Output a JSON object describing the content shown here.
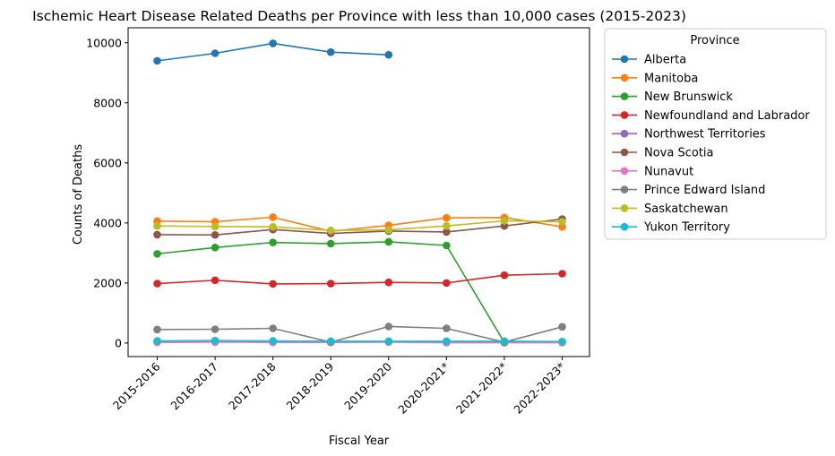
{
  "chart_data": {
    "type": "line",
    "title": "Ischemic Heart Disease Related Deaths per Province with less than 10,000 cases (2015-2023)",
    "xlabel": "Fiscal Year",
    "ylabel": "Counts of Deaths",
    "categories": [
      "2015-2016",
      "2016-2017",
      "2017-2018",
      "2018-2019",
      "2019-2020",
      "2020-2021*",
      "2021-2022*",
      "2022-2023*"
    ],
    "ylim": [
      -450,
      10500
    ],
    "yticks": [
      0,
      2000,
      4000,
      6000,
      8000,
      10000
    ],
    "grid": false,
    "legend": {
      "title": "Province",
      "placement": "outside-right"
    },
    "series": [
      {
        "name": "Alberta",
        "color": "#1f77b4",
        "values": [
          9400,
          9650,
          9980,
          9690,
          9600,
          null,
          null,
          null
        ]
      },
      {
        "name": "Manitoba",
        "color": "#ff7f0e",
        "values": [
          4060,
          4040,
          4190,
          3720,
          3920,
          4170,
          4180,
          3870
        ]
      },
      {
        "name": "New Brunswick",
        "color": "#2ca02c",
        "values": [
          2970,
          3180,
          3350,
          3310,
          3370,
          3250,
          20,
          null
        ]
      },
      {
        "name": "Newfoundland and Labrador",
        "color": "#d62728",
        "values": [
          1980,
          2090,
          1970,
          1980,
          2020,
          2000,
          2260,
          2310
        ]
      },
      {
        "name": "Northwest Territories",
        "color": "#9467bd",
        "values": [
          60,
          70,
          60,
          40,
          50,
          50,
          40,
          40
        ]
      },
      {
        "name": "Nova Scotia",
        "color": "#8c564b",
        "values": [
          3610,
          3600,
          3780,
          3650,
          3730,
          3700,
          3900,
          4130
        ]
      },
      {
        "name": "Nunavut",
        "color": "#e377c2",
        "values": [
          20,
          30,
          20,
          20,
          30,
          10,
          10,
          10
        ]
      },
      {
        "name": "Prince Edward Island",
        "color": "#7f7f7f",
        "values": [
          450,
          460,
          490,
          30,
          550,
          490,
          30,
          540
        ]
      },
      {
        "name": "Saskatchewan",
        "color": "#bcbd22",
        "values": [
          3900,
          3880,
          3870,
          3750,
          3770,
          3900,
          4070,
          4040
        ]
      },
      {
        "name": "Yukon Territory",
        "color": "#17becf",
        "values": [
          70,
          80,
          70,
          60,
          60,
          60,
          60,
          50
        ]
      }
    ]
  }
}
